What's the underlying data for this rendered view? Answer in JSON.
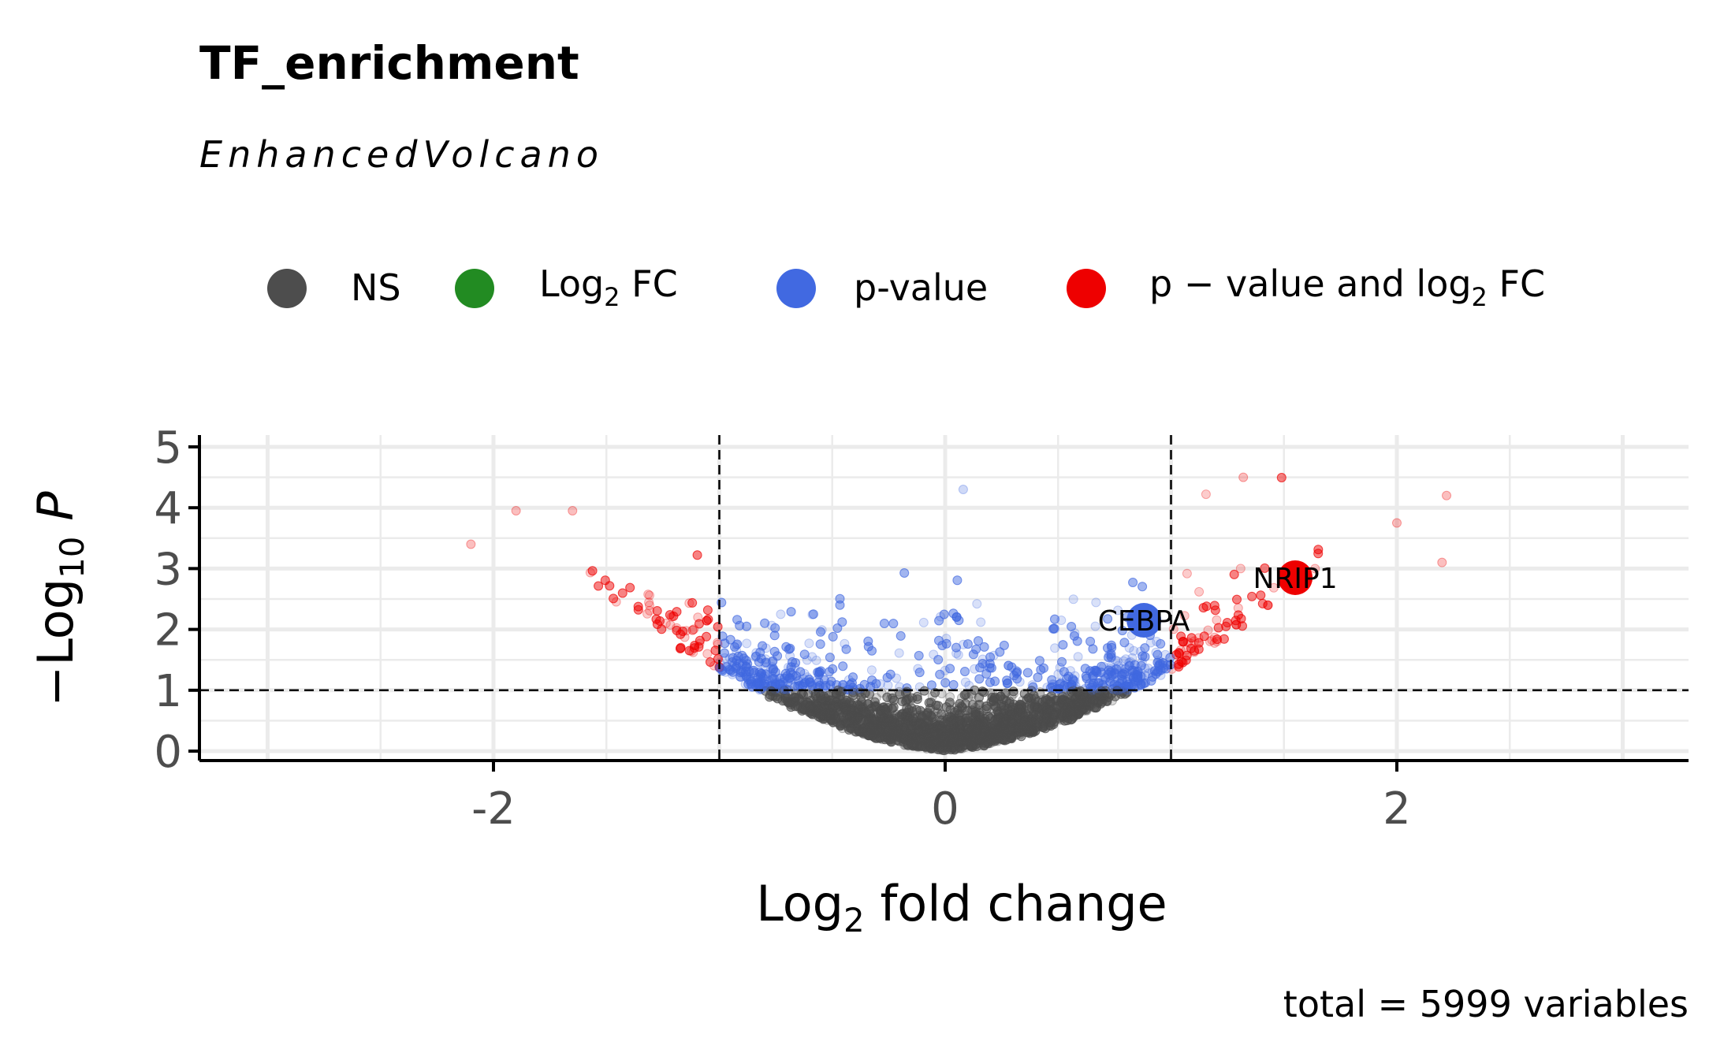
{
  "chart_data": {
    "type": "scatter",
    "title": "TF_enrichment",
    "subtitle": "EnhancedVolcano",
    "xlabel": "Log2 fold change",
    "ylabel": "-Log10 P",
    "caption": "total = 5999 variables",
    "xlim": [
      -3.3,
      3.3
    ],
    "ylim": [
      -0.2,
      5.2
    ],
    "x_ticks": [
      -2,
      0,
      2
    ],
    "y_ticks": [
      0,
      1,
      2,
      3,
      4,
      5
    ],
    "grid": true,
    "legend_position": "top",
    "thresholds": {
      "log2fc": 1,
      "neg_log10_p": 1
    },
    "total_variables": 5999,
    "series": [
      {
        "name": "NS",
        "color": "#4d4d4d"
      },
      {
        "name": "Log2 FC",
        "color": "#228b22"
      },
      {
        "name": "p-value",
        "color": "#4169e1"
      },
      {
        "name": "p-value and log2 FC",
        "color": "#ee0000"
      }
    ],
    "labeled_points": [
      {
        "label": "NRIP1",
        "x": 1.55,
        "y": 2.85,
        "series": "p-value and log2 FC"
      },
      {
        "label": "CEBPA",
        "x": 0.88,
        "y": 2.15,
        "series": "p-value"
      }
    ],
    "notable_points": [
      {
        "x": -2.1,
        "y": 3.4
      },
      {
        "x": -1.9,
        "y": 3.95
      },
      {
        "x": -1.65,
        "y": 3.95
      },
      {
        "x": 2.22,
        "y": 4.2
      },
      {
        "x": 1.32,
        "y": 4.5
      },
      {
        "x": 0.08,
        "y": 4.3
      },
      {
        "x": 2.0,
        "y": 3.75
      },
      {
        "x": 2.2,
        "y": 3.1
      }
    ]
  }
}
